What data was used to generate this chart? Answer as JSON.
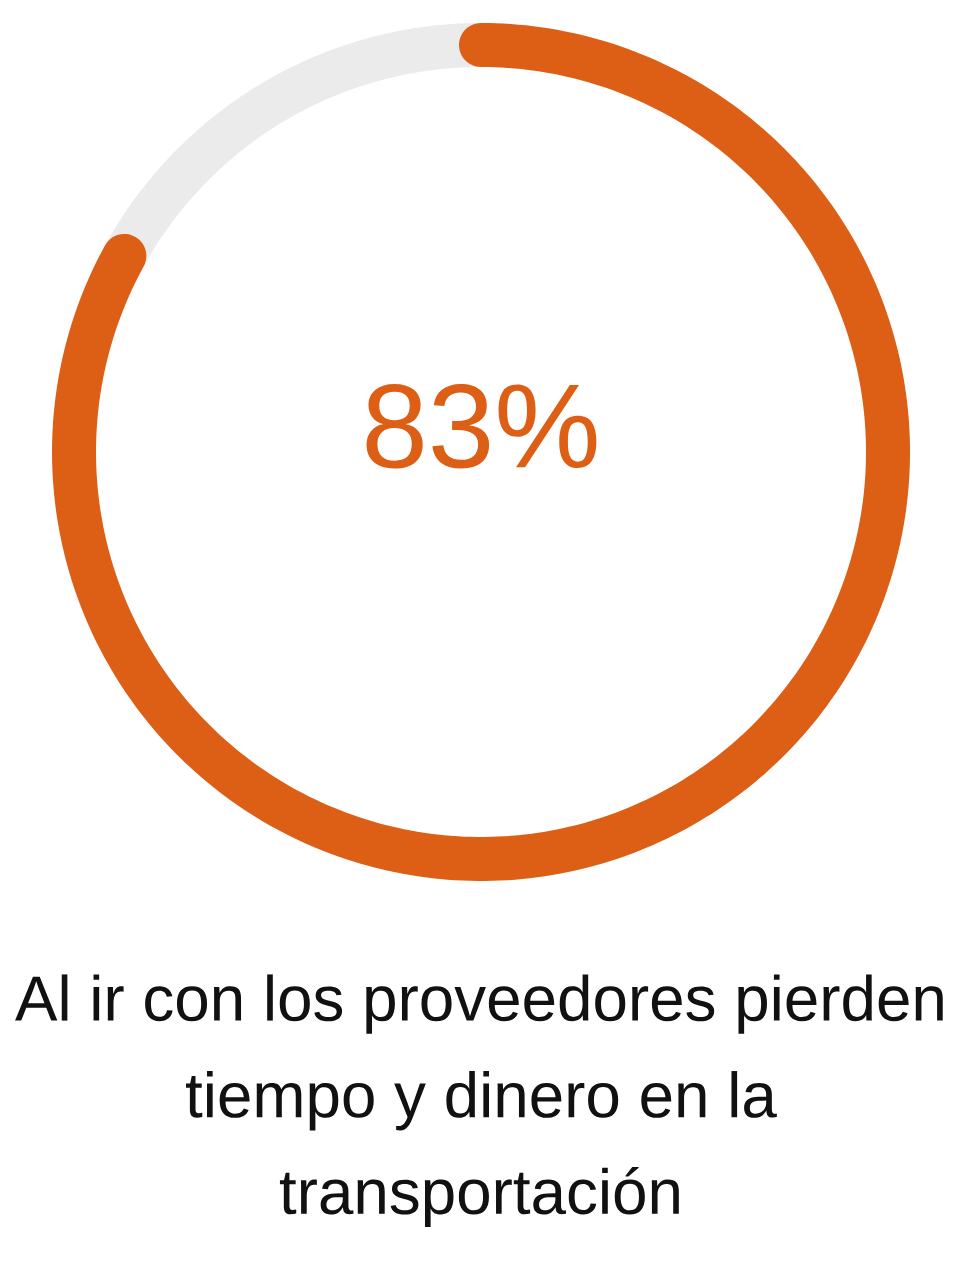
{
  "chart_data": {
    "type": "donut",
    "categories": [
      null,
      null
    ],
    "values": [
      83,
      17
    ],
    "colors": [
      "#dd5f16",
      "#ebebeb"
    ],
    "value_labels": [
      "83%",
      null
    ],
    "title": "Al ir con los proveedores pierden tiempo y dinero en la transportación"
  }
}
